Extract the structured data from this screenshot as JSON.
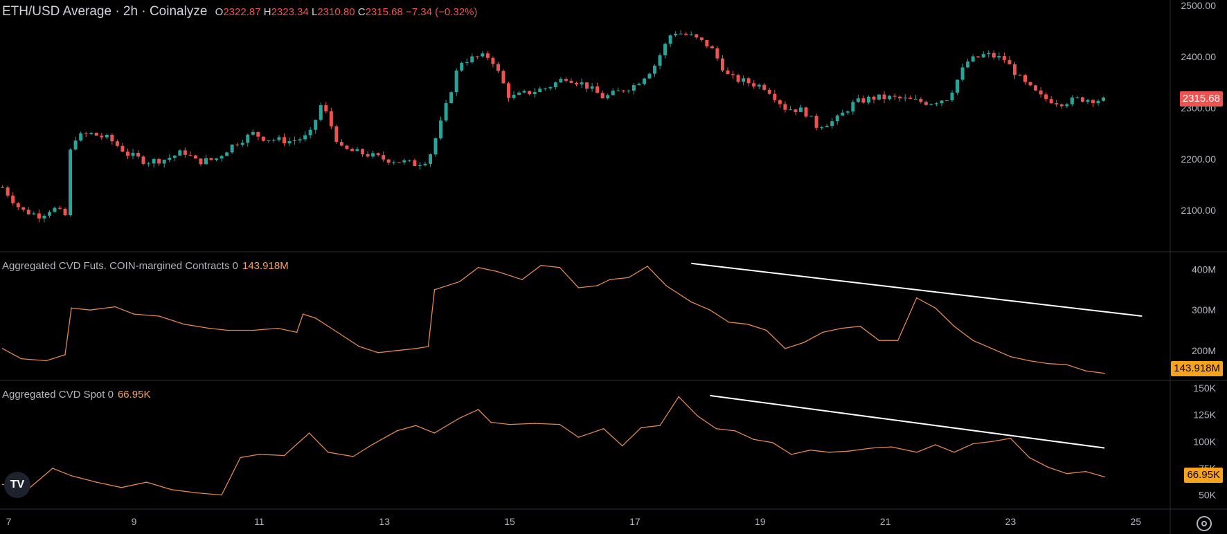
{
  "header": {
    "symbol": "ETH/USD Average · 2h · Coinalyze",
    "o_label": "O",
    "o": "2322.87",
    "h_label": "H",
    "h": "2323.34",
    "l_label": "L",
    "l": "2310.80",
    "c_label": "C",
    "c": "2315.68",
    "change": "−7.34 (−0.32%)"
  },
  "panes": {
    "futures": {
      "label": "Aggregated CVD Futs. COIN-margined Contracts 0",
      "value": "143.918M"
    },
    "spot": {
      "label": "Aggregated CVD Spot 0",
      "value": "66.95K"
    }
  },
  "price_tag": "2315.68",
  "futures_tag": "143.918M",
  "spot_tag": "66.95K",
  "logo": "TV",
  "colors": {
    "up": "#26a69a",
    "down": "#ef5350",
    "cvd": "#e2874f",
    "trend": "#ffffff"
  },
  "chart_data": [
    {
      "type": "candlestick",
      "title": "ETH/USD Average · 2h · Coinalyze",
      "ylim": [
        2030,
        2500
      ],
      "y_ticks": [
        "2500.00",
        "2400.00",
        "2300.00",
        "2200.00",
        "2100.00"
      ],
      "y_tick_values": [
        2500,
        2400,
        2300,
        2200,
        2100
      ],
      "x_ticks": [
        "7",
        "9",
        "11",
        "13",
        "15",
        "17",
        "19",
        "21",
        "23",
        "25"
      ],
      "x_tick_values": [
        7,
        9,
        11,
        13,
        15,
        17,
        19,
        21,
        23,
        25
      ],
      "x_range": [
        7,
        25.5
      ],
      "close_path_days": [
        6.9,
        7.2,
        7.5,
        7.7,
        7.9,
        8.0,
        8.3,
        8.6,
        8.9,
        9.2,
        9.5,
        9.8,
        10.0,
        10.3,
        10.6,
        10.9,
        11.1,
        11.5,
        11.8,
        12.0,
        12.3,
        12.7,
        13.0,
        13.3,
        13.5,
        13.7,
        13.9,
        14.2,
        14.5,
        14.7,
        15.0,
        15.3,
        15.6,
        15.9,
        16.2,
        16.5,
        16.8,
        17.0,
        17.3,
        17.6,
        17.9,
        18.2,
        18.5,
        18.8,
        19.1,
        19.4,
        19.7,
        19.9,
        20.2,
        20.5,
        20.8,
        21.1,
        21.4,
        21.7,
        22.0,
        22.3,
        22.6,
        22.9,
        23.2,
        23.5,
        23.8,
        24.1,
        24.5
      ],
      "close_path_values": [
        2145,
        2100,
        2090,
        2105,
        2090,
        2240,
        2250,
        2240,
        2210,
        2195,
        2200,
        2215,
        2195,
        2200,
        2230,
        2250,
        2240,
        2235,
        2245,
        2310,
        2220,
        2210,
        2200,
        2195,
        2190,
        2200,
        2270,
        2390,
        2400,
        2400,
        2320,
        2330,
        2340,
        2360,
        2345,
        2320,
        2335,
        2345,
        2380,
        2450,
        2440,
        2420,
        2360,
        2350,
        2340,
        2300,
        2295,
        2265,
        2275,
        2310,
        2320,
        2320,
        2315,
        2310,
        2320,
        2390,
        2405,
        2395,
        2350,
        2320,
        2310,
        2318,
        2315
      ]
    },
    {
      "type": "line",
      "title": "Aggregated CVD Futs. COIN-margined Contracts 0",
      "ylim": [
        140,
        430
      ],
      "y_ticks": [
        "400M",
        "300M",
        "200M"
      ],
      "y_tick_values": [
        400,
        300,
        200
      ],
      "x": [
        6.9,
        7.2,
        7.6,
        7.9,
        8.0,
        8.3,
        8.7,
        9.0,
        9.4,
        9.8,
        10.2,
        10.5,
        10.9,
        11.3,
        11.6,
        11.7,
        11.9,
        12.2,
        12.6,
        12.9,
        13.2,
        13.5,
        13.7,
        13.8,
        14.2,
        14.5,
        14.8,
        15.2,
        15.5,
        15.8,
        16.1,
        16.4,
        16.6,
        16.9,
        17.2,
        17.5,
        17.9,
        18.2,
        18.5,
        18.8,
        19.1,
        19.4,
        19.7,
        20.0,
        20.3,
        20.6,
        20.9,
        21.2,
        21.5,
        21.8,
        22.1,
        22.4,
        22.7,
        23.0,
        23.3,
        23.6,
        23.9,
        24.2,
        24.5
      ],
      "values": [
        205,
        180,
        175,
        190,
        305,
        300,
        308,
        290,
        285,
        265,
        255,
        250,
        250,
        255,
        245,
        290,
        280,
        250,
        210,
        195,
        200,
        205,
        210,
        350,
        370,
        405,
        395,
        375,
        410,
        405,
        355,
        360,
        375,
        380,
        408,
        360,
        320,
        300,
        270,
        265,
        250,
        205,
        220,
        245,
        255,
        260,
        225,
        225,
        330,
        305,
        260,
        225,
        205,
        185,
        175,
        168,
        165,
        150,
        144
      ],
      "trendline": {
        "x": [
          17.9,
          25.1
        ],
        "y": [
          415,
          285
        ]
      }
    },
    {
      "type": "line",
      "title": "Aggregated CVD Spot 0",
      "ylim": [
        42,
        152
      ],
      "y_ticks": [
        "150K",
        "125K",
        "100K",
        "75K",
        "50K"
      ],
      "y_tick_values": [
        150,
        125,
        100,
        75,
        50
      ],
      "x": [
        6.9,
        7.3,
        7.7,
        8.0,
        8.4,
        8.8,
        9.2,
        9.6,
        10.0,
        10.4,
        10.7,
        11.0,
        11.4,
        11.8,
        12.1,
        12.5,
        12.8,
        13.2,
        13.5,
        13.8,
        14.2,
        14.5,
        14.7,
        15.0,
        15.4,
        15.8,
        16.1,
        16.5,
        16.8,
        17.1,
        17.4,
        17.7,
        18.0,
        18.3,
        18.6,
        18.9,
        19.2,
        19.5,
        19.8,
        20.1,
        20.4,
        20.8,
        21.1,
        21.5,
        21.8,
        22.1,
        22.4,
        22.7,
        23.0,
        23.3,
        23.6,
        23.9,
        24.2,
        24.5
      ],
      "values": [
        60,
        55,
        75,
        68,
        62,
        57,
        62,
        55,
        52,
        50,
        85,
        88,
        87,
        108,
        90,
        86,
        97,
        110,
        115,
        108,
        122,
        130,
        118,
        116,
        117,
        116,
        104,
        112,
        96,
        113,
        115,
        142,
        124,
        112,
        110,
        102,
        99,
        88,
        92,
        90,
        91,
        94,
        95,
        90,
        97,
        90,
        98,
        100,
        103,
        85,
        76,
        70,
        72,
        67
      ],
      "trendline": {
        "x": [
          18.2,
          24.5
        ],
        "y": [
          143,
          94
        ]
      }
    }
  ]
}
